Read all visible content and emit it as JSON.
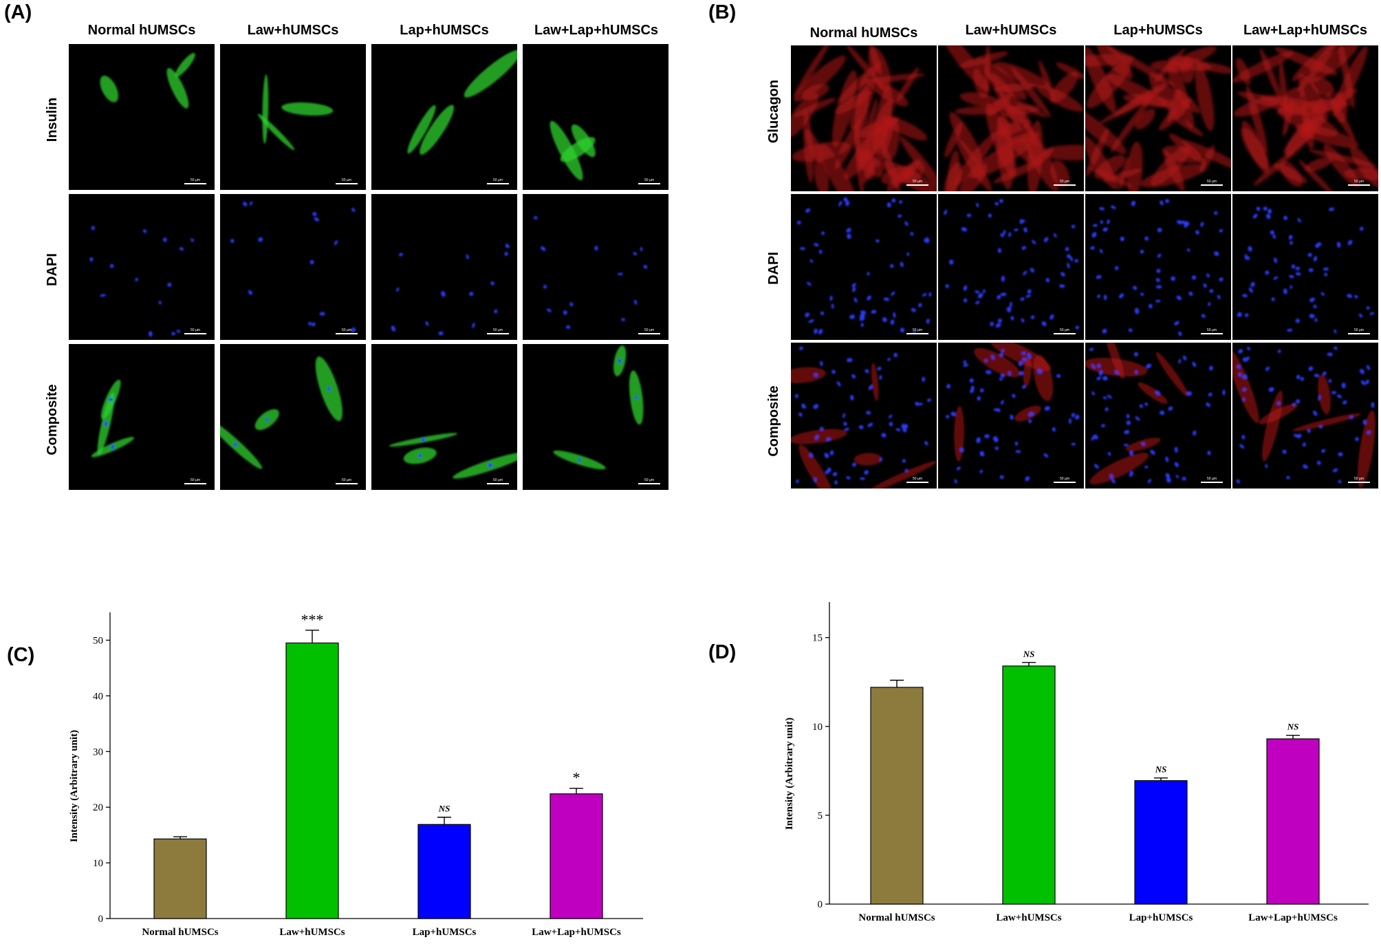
{
  "figure_a": {
    "letter": "(A)",
    "columns": [
      "Normal hUMSCs",
      "Law+hUMSCs",
      "Lap+hUMSCs",
      "Law+Lap+hUMSCs"
    ],
    "rows": [
      "Insulin",
      "DAPI",
      "Composite"
    ],
    "scale_bar": "50 µm"
  },
  "figure_b": {
    "letter": "(B)",
    "columns": [
      "Normal hUMSCs",
      "Law+hUMSCs",
      "Lap+hUMSCs",
      "Law+Lap+hUMSCs"
    ],
    "rows": [
      "Glucagon",
      "DAPI",
      "Composite"
    ],
    "scale_bar": "50 µm"
  },
  "colors": {
    "insulin_green": "#2bd12b",
    "glucagon_red": "#b21a1a",
    "dapi_blue": "#2a3cff",
    "bar_olive": "#8c7b3c",
    "bar_green": "#00c000",
    "bar_blue": "#0000ff",
    "bar_magenta": "#c000c0"
  },
  "chart_data": [
    {
      "letter": "(C)",
      "type": "bar",
      "categories": [
        "Normal hUMSCs",
        "Law+hUMSCs",
        "Lap+hUMSCs",
        "Law+Lap+hUMSCs"
      ],
      "values": [
        14.3,
        49.5,
        16.9,
        22.4
      ],
      "errors": [
        0.4,
        2.3,
        1.3,
        1.0
      ],
      "annotations": [
        "",
        "***",
        "NS",
        "*"
      ],
      "bar_colors": [
        "#8c7b3c",
        "#00c000",
        "#0000ff",
        "#c000c0"
      ],
      "ylabel": "Intensity (Arbitrary unit)",
      "xlabel": "",
      "ylim": [
        0,
        55
      ],
      "yticks": [
        0,
        10,
        20,
        30,
        40,
        50
      ],
      "grid": false
    },
    {
      "letter": "(D)",
      "type": "bar",
      "categories": [
        "Normal hUMSCs",
        "Law+hUMSCs",
        "Lap+hUMSCs",
        "Law+Lap+hUMSCs"
      ],
      "values": [
        12.2,
        13.4,
        6.95,
        9.3
      ],
      "errors": [
        0.4,
        0.2,
        0.15,
        0.2
      ],
      "annotations": [
        "",
        "NS",
        "NS",
        "NS"
      ],
      "bar_colors": [
        "#8c7b3c",
        "#00c000",
        "#0000ff",
        "#c000c0"
      ],
      "ylabel": "Intensity (Arbitrary unit)",
      "xlabel": "",
      "ylim": [
        0,
        17
      ],
      "yticks": [
        0,
        5,
        10,
        15
      ],
      "grid": false
    }
  ]
}
